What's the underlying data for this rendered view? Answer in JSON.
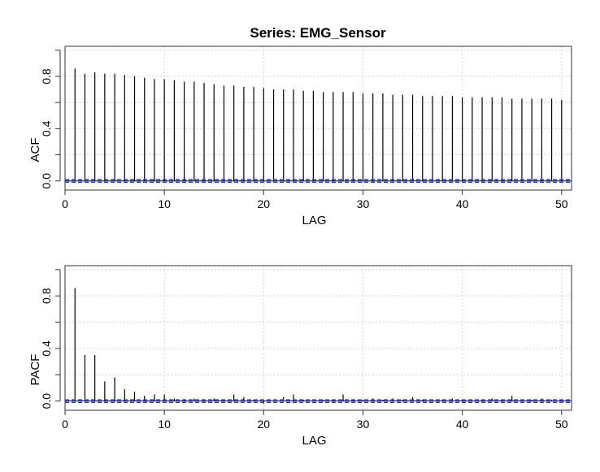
{
  "title": "Series:  EMG_Sensor",
  "colors": {
    "ci_line": "#1f3fd6",
    "bar": "#000000",
    "zero_line": "#000000",
    "grid": "#c8c8c8"
  },
  "chart_data": [
    {
      "type": "bar",
      "ylabel": "ACF",
      "xlabel": "LAG",
      "xlim": [
        0,
        51
      ],
      "ylim": [
        -0.07,
        1.03
      ],
      "xticks": [
        0,
        10,
        20,
        30,
        40,
        50
      ],
      "yticks": [
        0.0,
        0.4,
        0.8
      ],
      "yticks_minor": [
        0.2,
        0.6,
        1.0
      ],
      "ytick_labels": [
        "0.0",
        "0.4",
        "0.8"
      ],
      "grid": true,
      "ci": [
        -0.01,
        0.01
      ],
      "x": [
        1,
        2,
        3,
        4,
        5,
        6,
        7,
        8,
        9,
        10,
        11,
        12,
        13,
        14,
        15,
        16,
        17,
        18,
        19,
        20,
        21,
        22,
        23,
        24,
        25,
        26,
        27,
        28,
        29,
        30,
        31,
        32,
        33,
        34,
        35,
        36,
        37,
        38,
        39,
        40,
        41,
        42,
        43,
        44,
        45,
        46,
        47,
        48,
        49,
        50
      ],
      "values": [
        0.86,
        0.82,
        0.83,
        0.82,
        0.82,
        0.81,
        0.8,
        0.79,
        0.78,
        0.78,
        0.77,
        0.76,
        0.76,
        0.75,
        0.74,
        0.73,
        0.73,
        0.72,
        0.72,
        0.71,
        0.7,
        0.7,
        0.7,
        0.69,
        0.69,
        0.68,
        0.68,
        0.68,
        0.68,
        0.67,
        0.67,
        0.67,
        0.66,
        0.66,
        0.66,
        0.65,
        0.65,
        0.65,
        0.65,
        0.64,
        0.64,
        0.64,
        0.64,
        0.64,
        0.63,
        0.63,
        0.63,
        0.63,
        0.63,
        0.62
      ]
    },
    {
      "type": "bar",
      "ylabel": "PACF",
      "xlabel": "LAG",
      "xlim": [
        0,
        51
      ],
      "ylim": [
        -0.07,
        1.03
      ],
      "xticks": [
        0,
        10,
        20,
        30,
        40,
        50
      ],
      "yticks": [
        0.0,
        0.4,
        0.8
      ],
      "yticks_minor": [
        0.2,
        0.6,
        1.0
      ],
      "ytick_labels": [
        "0.0",
        "0.4",
        "0.8"
      ],
      "grid": true,
      "ci": [
        -0.01,
        0.01
      ],
      "x": [
        1,
        2,
        3,
        4,
        5,
        6,
        7,
        8,
        9,
        10,
        11,
        12,
        13,
        14,
        15,
        16,
        17,
        18,
        19,
        20,
        21,
        22,
        23,
        24,
        25,
        26,
        27,
        28,
        29,
        30,
        31,
        32,
        33,
        34,
        35,
        36,
        37,
        38,
        39,
        40,
        41,
        42,
        43,
        44,
        45,
        46,
        47,
        48,
        49,
        50
      ],
      "values": [
        0.86,
        0.35,
        0.35,
        0.15,
        0.18,
        0.09,
        0.07,
        0.04,
        0.05,
        0.05,
        0.02,
        0.01,
        0.02,
        0.01,
        0.02,
        0.01,
        0.05,
        0.03,
        0.01,
        -0.02,
        0.0,
        0.03,
        0.05,
        0.01,
        0.0,
        0.01,
        0.01,
        0.05,
        0.01,
        0.01,
        0.02,
        0.01,
        0.02,
        0.01,
        0.03,
        0.01,
        0.0,
        0.01,
        0.02,
        0.01,
        0.0,
        0.01,
        0.02,
        0.01,
        0.04,
        0.01,
        0.01,
        0.02,
        0.01,
        0.01
      ]
    }
  ]
}
